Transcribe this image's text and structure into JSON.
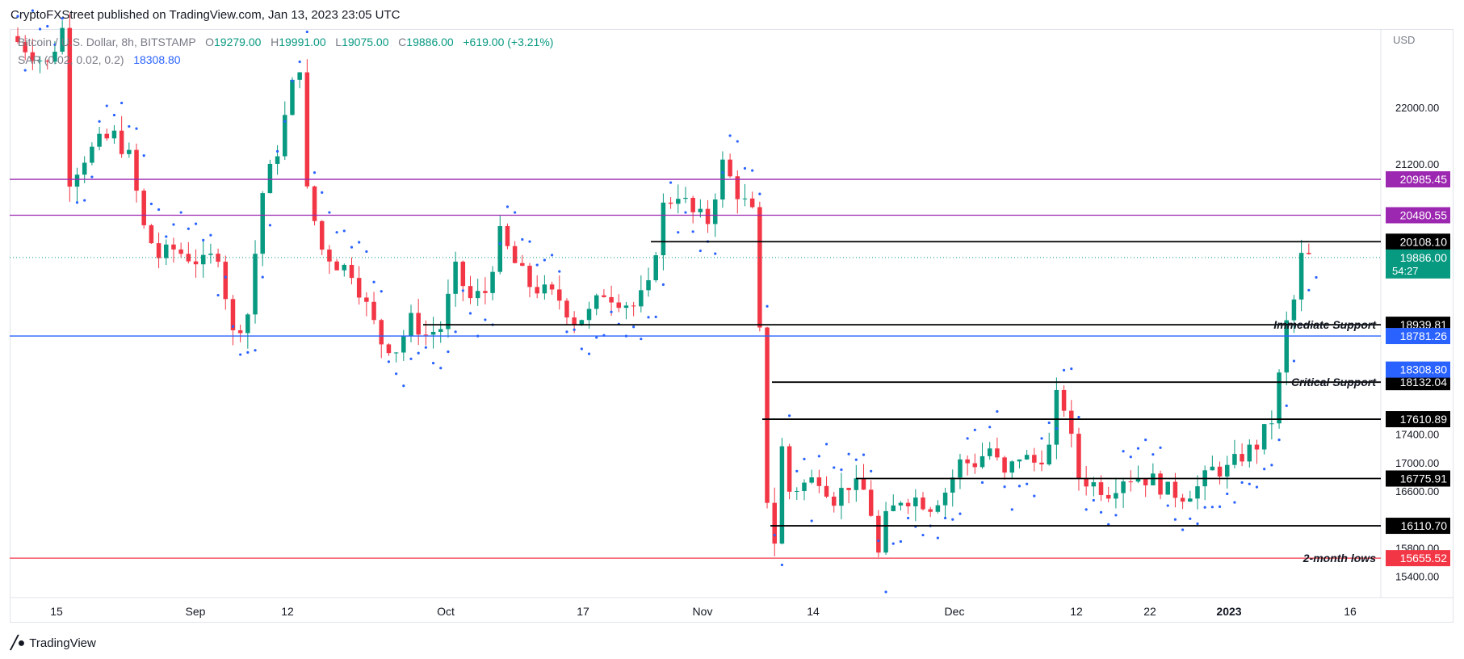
{
  "header": {
    "text": "CryptoFXStreet published on TradingView.com, Jan 13, 2023 23:05 UTC"
  },
  "legend": {
    "symbol": "Bitcoin / U.S. Dollar, 8h, BITSTAMP",
    "o_label": "O",
    "o_value": "19279.00",
    "h_label": "H",
    "h_value": "19991.00",
    "l_label": "L",
    "l_value": "19075.00",
    "c_label": "C",
    "c_value": "19886.00",
    "change": "+619.00 (+3.21%)",
    "sar_label": "SAR (0.02, 0.02, 0.2)",
    "sar_value": "18308.80"
  },
  "footer": {
    "brand": "TradingView"
  },
  "colors": {
    "up": "#089981",
    "down": "#f23645",
    "sar": "#2962ff",
    "resistance": "#9c27b0",
    "level": "#000000",
    "blue_level": "#2962ff",
    "low": "#f23645"
  },
  "chart_data": {
    "type": "candlestick",
    "currency": "USD",
    "y_ticks": [
      22000,
      21200,
      17400,
      17000,
      16600,
      15800,
      15400
    ],
    "x_labels": [
      "15",
      "Sep",
      "12",
      "Oct",
      "17",
      "Nov",
      "14",
      "Dec",
      "12",
      "22",
      "2023",
      "16"
    ],
    "x_label_bold": "2023",
    "ylim": [
      15100,
      23100
    ],
    "levels": [
      {
        "value": 20985.45,
        "label": "20985.45",
        "color": "#9c27b0",
        "annotation": ""
      },
      {
        "value": 20480.55,
        "label": "20480.55",
        "color": "#9c27b0",
        "annotation": ""
      },
      {
        "value": 20108.1,
        "label": "20108.10",
        "color": "#000000",
        "annotation": ""
      },
      {
        "value": 18939.81,
        "label": "18939.81",
        "color": "#000000",
        "annotation": "Immediate Support"
      },
      {
        "value": 18781.26,
        "label": "18781.26",
        "color": "#2962ff",
        "annotation": ""
      },
      {
        "value": 18132.04,
        "label": "18132.04",
        "color": "#000000",
        "annotation": "Critical Support"
      },
      {
        "value": 17610.89,
        "label": "17610.89",
        "color": "#000000",
        "annotation": ""
      },
      {
        "value": 16775.91,
        "label": "16775.91",
        "color": "#000000",
        "annotation": ""
      },
      {
        "value": 16110.7,
        "label": "16110.70",
        "color": "#000000",
        "annotation": ""
      },
      {
        "value": 15655.52,
        "label": "15655.52",
        "color": "#f23645",
        "annotation": "2-month lows"
      }
    ],
    "current_price": {
      "value": 19886.0,
      "label": "19886.00",
      "countdown": "54:27"
    },
    "sar_current": {
      "value": 18308.8,
      "label": "18308.80"
    },
    "close_path": [
      [
        0,
        23000
      ],
      [
        5,
        22600
      ],
      [
        7,
        23100
      ],
      [
        8,
        21000
      ],
      [
        10,
        21300
      ],
      [
        12,
        21500
      ],
      [
        14,
        21600
      ],
      [
        16,
        21300
      ],
      [
        18,
        20300
      ],
      [
        20,
        19900
      ],
      [
        22,
        20000
      ],
      [
        24,
        19900
      ],
      [
        26,
        19800
      ],
      [
        28,
        19950
      ],
      [
        30,
        18800
      ],
      [
        32,
        19100
      ],
      [
        34,
        20800
      ],
      [
        36,
        21400
      ],
      [
        38,
        22300
      ],
      [
        39,
        22600
      ],
      [
        40,
        20800
      ],
      [
        42,
        20000
      ],
      [
        44,
        19800
      ],
      [
        46,
        19700
      ],
      [
        48,
        19200
      ],
      [
        50,
        18700
      ],
      [
        52,
        18600
      ],
      [
        54,
        19000
      ],
      [
        56,
        18800
      ],
      [
        58,
        18900
      ],
      [
        60,
        19700
      ],
      [
        62,
        19300
      ],
      [
        64,
        19400
      ],
      [
        66,
        20200
      ],
      [
        68,
        19800
      ],
      [
        70,
        19500
      ],
      [
        72,
        19400
      ],
      [
        74,
        19300
      ],
      [
        76,
        19000
      ],
      [
        78,
        19100
      ],
      [
        80,
        19400
      ],
      [
        82,
        19300
      ],
      [
        84,
        19200
      ],
      [
        86,
        19450
      ],
      [
        88,
        20600
      ],
      [
        90,
        20800
      ],
      [
        92,
        20500
      ],
      [
        94,
        20400
      ],
      [
        96,
        21200
      ],
      [
        98,
        20800
      ],
      [
        100,
        20500
      ],
      [
        101,
        18800
      ],
      [
        102,
        16500
      ],
      [
        103,
        15900
      ],
      [
        104,
        17200
      ],
      [
        105,
        16600
      ],
      [
        107,
        16700
      ],
      [
        109,
        16800
      ],
      [
        111,
        16500
      ],
      [
        113,
        16700
      ],
      [
        115,
        16600
      ],
      [
        116,
        16300
      ],
      [
        117,
        15700
      ],
      [
        118,
        16200
      ],
      [
        120,
        16500
      ],
      [
        122,
        16500
      ],
      [
        124,
        16400
      ],
      [
        126,
        16600
      ],
      [
        128,
        17000
      ],
      [
        130,
        17000
      ],
      [
        132,
        17200
      ],
      [
        134,
        16800
      ],
      [
        136,
        17100
      ],
      [
        138,
        17000
      ],
      [
        140,
        17200
      ],
      [
        141,
        17900
      ],
      [
        142,
        17800
      ],
      [
        143,
        17300
      ],
      [
        144,
        16800
      ],
      [
        146,
        16700
      ],
      [
        148,
        16600
      ],
      [
        150,
        16800
      ],
      [
        152,
        16800
      ],
      [
        154,
        16750
      ],
      [
        156,
        16600
      ],
      [
        158,
        16550
      ],
      [
        160,
        16650
      ],
      [
        162,
        16900
      ],
      [
        164,
        16900
      ],
      [
        166,
        17100
      ],
      [
        168,
        17250
      ],
      [
        170,
        17600
      ],
      [
        171,
        18200
      ],
      [
        172,
        18950
      ],
      [
        173,
        19279
      ],
      [
        174,
        19886
      ]
    ],
    "n_bars": 176
  }
}
